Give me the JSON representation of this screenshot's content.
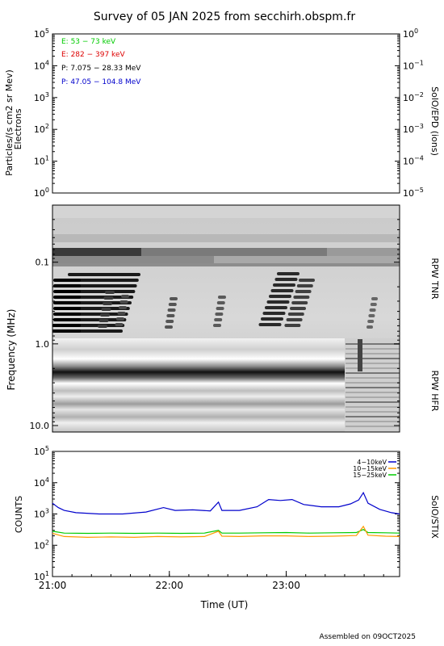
{
  "title": "Survey of 05 JAN 2025 from secchirh.obspm.fr",
  "footer": "Assembled on 09OCT2025",
  "chart_data": [
    {
      "type": "line",
      "panel": "particles",
      "ylabel_left": "Particles/(s cm2 sr Mev)",
      "ylabel_left2": "Electrons",
      "ylabel_right": "SolO/EPD (ions)",
      "yscale": "log",
      "ylim_left": [
        1,
        100000
      ],
      "ylim_right": [
        1e-05,
        1
      ],
      "left_ticks": [
        {
          "base": "10",
          "exp": "0"
        },
        {
          "base": "10",
          "exp": "1"
        },
        {
          "base": "10",
          "exp": "2"
        },
        {
          "base": "10",
          "exp": "3"
        },
        {
          "base": "10",
          "exp": "4"
        },
        {
          "base": "10",
          "exp": "5"
        }
      ],
      "right_ticks": [
        {
          "base": "10",
          "exp": "−5"
        },
        {
          "base": "10",
          "exp": "−4"
        },
        {
          "base": "10",
          "exp": "−3"
        },
        {
          "base": "10",
          "exp": "−2"
        },
        {
          "base": "10",
          "exp": "−1"
        },
        {
          "base": "10",
          "exp": "0"
        }
      ],
      "legend": [
        {
          "label": "E: 53 − 73 keV",
          "color": "#00cc00"
        },
        {
          "label": "E: 282 − 397 keV",
          "color": "#dd0000"
        },
        {
          "label": "P: 7.075 − 28.33 MeV",
          "color": "#000000"
        },
        {
          "label": "P: 47.05 − 104.8 MeV",
          "color": "#0000cc"
        }
      ],
      "series": []
    },
    {
      "type": "heatmap",
      "panel": "radio",
      "ylabel": "Frequency (MHz)",
      "yscale": "log",
      "ylim": [
        12,
        0.02
      ],
      "y_ticks": [
        "0.1",
        "1.0",
        "10.0"
      ],
      "right_labels": [
        "RPW TNR",
        "RPW HFR"
      ],
      "colormap": "grayscale"
    },
    {
      "type": "line",
      "panel": "stix",
      "ylabel": "COUNTS",
      "ylabel_right": "SolO/STIX",
      "yscale": "log",
      "ylim": [
        10,
        100000
      ],
      "y_ticks": [
        {
          "base": "10",
          "exp": "1"
        },
        {
          "base": "10",
          "exp": "2"
        },
        {
          "base": "10",
          "exp": "3"
        },
        {
          "base": "10",
          "exp": "4"
        },
        {
          "base": "10",
          "exp": "5"
        }
      ],
      "xlabel": "Time (UT)",
      "x_ticks": [
        "21:00",
        "22:00",
        "23:00"
      ],
      "xlim_hours": [
        21.0,
        23.97
      ],
      "x_tick_hours": [
        21,
        22,
        23
      ],
      "series": [
        {
          "name": "4−10keV",
          "color": "#0000cc",
          "points": [
            [
              21.0,
              2200
            ],
            [
              21.05,
              1600
            ],
            [
              21.1,
              1300
            ],
            [
              21.2,
              1100
            ],
            [
              21.4,
              1000
            ],
            [
              21.6,
              1000
            ],
            [
              21.8,
              1150
            ],
            [
              21.95,
              1600
            ],
            [
              22.05,
              1300
            ],
            [
              22.2,
              1350
            ],
            [
              22.35,
              1250
            ],
            [
              22.42,
              2400
            ],
            [
              22.45,
              1300
            ],
            [
              22.6,
              1300
            ],
            [
              22.75,
              1700
            ],
            [
              22.85,
              2900
            ],
            [
              22.95,
              2700
            ],
            [
              23.05,
              2900
            ],
            [
              23.15,
              2000
            ],
            [
              23.3,
              1700
            ],
            [
              23.45,
              1700
            ],
            [
              23.55,
              2100
            ],
            [
              23.62,
              2800
            ],
            [
              23.66,
              4800
            ],
            [
              23.7,
              2200
            ],
            [
              23.8,
              1400
            ],
            [
              23.9,
              1100
            ],
            [
              23.97,
              1000
            ]
          ]
        },
        {
          "name": "10−15keV",
          "color": "#ff9900",
          "points": [
            [
              21.0,
              240
            ],
            [
              21.1,
              190
            ],
            [
              21.3,
              180
            ],
            [
              21.5,
              185
            ],
            [
              21.7,
              180
            ],
            [
              21.9,
              190
            ],
            [
              22.1,
              185
            ],
            [
              22.3,
              190
            ],
            [
              22.42,
              280
            ],
            [
              22.45,
              195
            ],
            [
              22.6,
              190
            ],
            [
              22.8,
              200
            ],
            [
              23.0,
              200
            ],
            [
              23.2,
              190
            ],
            [
              23.4,
              195
            ],
            [
              23.6,
              205
            ],
            [
              23.66,
              400
            ],
            [
              23.7,
              210
            ],
            [
              23.85,
              195
            ],
            [
              23.97,
              190
            ]
          ]
        },
        {
          "name": "15−25keV",
          "color": "#00cc00",
          "points": [
            [
              21.0,
              280
            ],
            [
              21.1,
              245
            ],
            [
              21.3,
              240
            ],
            [
              21.5,
              245
            ],
            [
              21.7,
              240
            ],
            [
              21.9,
              245
            ],
            [
              22.1,
              240
            ],
            [
              22.3,
              245
            ],
            [
              22.42,
              300
            ],
            [
              22.45,
              245
            ],
            [
              22.6,
              245
            ],
            [
              22.8,
              250
            ],
            [
              23.0,
              255
            ],
            [
              23.2,
              245
            ],
            [
              23.4,
              250
            ],
            [
              23.6,
              255
            ],
            [
              23.66,
              320
            ],
            [
              23.7,
              255
            ],
            [
              23.85,
              250
            ],
            [
              23.97,
              245
            ]
          ]
        }
      ]
    }
  ]
}
